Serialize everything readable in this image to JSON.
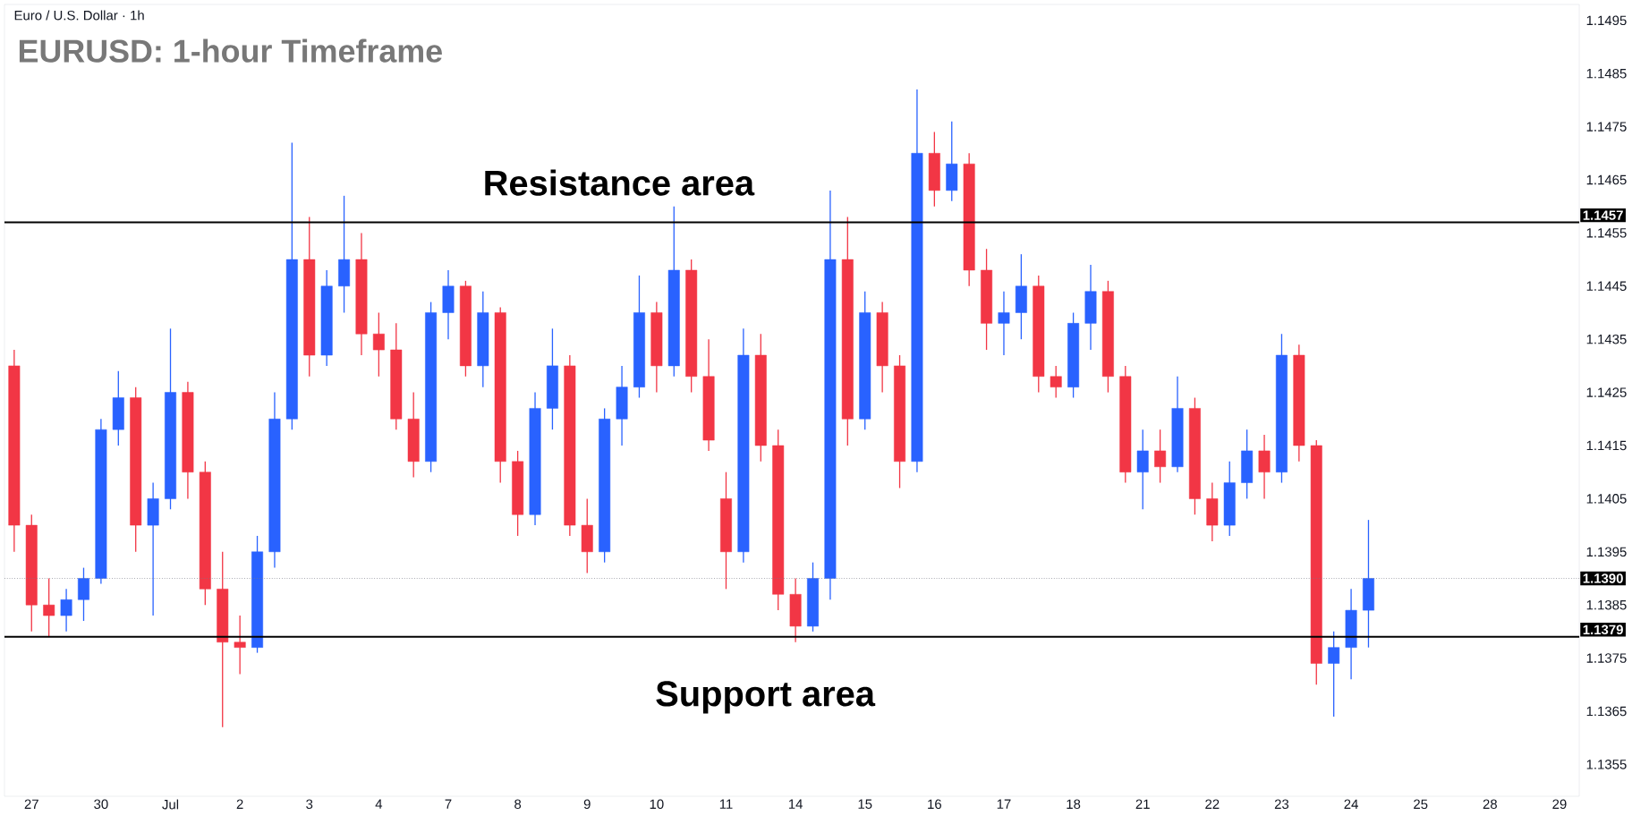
{
  "chart_data": {
    "type": "candlestick",
    "title": "EURUSD: 1-hour Timeframe",
    "subtitle": "Euro / U.S. Dollar · 1h",
    "categories": [
      null,
      "27",
      null,
      null,
      null,
      "30",
      null,
      null,
      null,
      "Jul",
      null,
      null,
      null,
      "2",
      null,
      null,
      null,
      "3",
      null,
      null,
      null,
      "4",
      null,
      null,
      null,
      "7",
      null,
      null,
      null,
      "8",
      null,
      null,
      null,
      "9",
      null,
      null,
      null,
      "10",
      null,
      null,
      null,
      "11",
      null,
      null,
      null,
      "14",
      null,
      null,
      null,
      "15",
      null,
      null,
      null,
      "16",
      null,
      null,
      null,
      "17",
      null,
      null,
      null,
      "18",
      null,
      null,
      null,
      "21",
      null,
      null,
      null,
      "22",
      null,
      null,
      null,
      "23",
      null,
      null,
      null,
      "24",
      null,
      null,
      null,
      "25",
      null,
      null,
      null,
      "28",
      null,
      null,
      null,
      "29",
      null
    ],
    "ohlc": [
      [
        1.143,
        1.1433,
        1.1395,
        1.14
      ],
      [
        1.14,
        1.1402,
        1.138,
        1.1385
      ],
      [
        1.1385,
        1.139,
        1.1379,
        1.1383
      ],
      [
        1.1383,
        1.1388,
        1.138,
        1.1386
      ],
      [
        1.1386,
        1.1392,
        1.1382,
        1.139
      ],
      [
        1.139,
        1.142,
        1.1389,
        1.1418
      ],
      [
        1.1418,
        1.1429,
        1.1415,
        1.1424
      ],
      [
        1.1424,
        1.1426,
        1.1395,
        1.14
      ],
      [
        1.14,
        1.1408,
        1.1383,
        1.1405
      ],
      [
        1.1405,
        1.1437,
        1.1403,
        1.1425
      ],
      [
        1.1425,
        1.1427,
        1.1405,
        1.141
      ],
      [
        1.141,
        1.1412,
        1.1385,
        1.1388
      ],
      [
        1.1388,
        1.1395,
        1.1362,
        1.1378
      ],
      [
        1.1378,
        1.1383,
        1.1372,
        1.1377
      ],
      [
        1.1377,
        1.1398,
        1.1376,
        1.1395
      ],
      [
        1.1395,
        1.1425,
        1.1392,
        1.142
      ],
      [
        1.142,
        1.1472,
        1.1418,
        1.145
      ],
      [
        1.145,
        1.1458,
        1.1428,
        1.1432
      ],
      [
        1.1432,
        1.1448,
        1.143,
        1.1445
      ],
      [
        1.1445,
        1.1462,
        1.144,
        1.145
      ],
      [
        1.145,
        1.1455,
        1.1432,
        1.1436
      ],
      [
        1.1436,
        1.144,
        1.1428,
        1.1433
      ],
      [
        1.1433,
        1.1438,
        1.1418,
        1.142
      ],
      [
        1.142,
        1.1425,
        1.1409,
        1.1412
      ],
      [
        1.1412,
        1.1442,
        1.141,
        1.144
      ],
      [
        1.144,
        1.1448,
        1.1435,
        1.1445
      ],
      [
        1.1445,
        1.1446,
        1.1428,
        1.143
      ],
      [
        1.143,
        1.1444,
        1.1426,
        1.144
      ],
      [
        1.144,
        1.1441,
        1.1408,
        1.1412
      ],
      [
        1.1412,
        1.1414,
        1.1398,
        1.1402
      ],
      [
        1.1402,
        1.1425,
        1.14,
        1.1422
      ],
      [
        1.1422,
        1.1437,
        1.1418,
        1.143
      ],
      [
        1.143,
        1.1432,
        1.1398,
        1.14
      ],
      [
        1.14,
        1.1405,
        1.1391,
        1.1395
      ],
      [
        1.1395,
        1.1422,
        1.1393,
        1.142
      ],
      [
        1.142,
        1.143,
        1.1415,
        1.1426
      ],
      [
        1.1426,
        1.1447,
        1.1424,
        1.144
      ],
      [
        1.144,
        1.1442,
        1.1425,
        1.143
      ],
      [
        1.143,
        1.146,
        1.1428,
        1.1448
      ],
      [
        1.1448,
        1.145,
        1.1425,
        1.1428
      ],
      [
        1.1428,
        1.1435,
        1.1414,
        1.1416
      ],
      [
        1.1405,
        1.141,
        1.1388,
        1.1395
      ],
      [
        1.1395,
        1.1437,
        1.1393,
        1.1432
      ],
      [
        1.1432,
        1.1436,
        1.1412,
        1.1415
      ],
      [
        1.1415,
        1.1418,
        1.1384,
        1.1387
      ],
      [
        1.1387,
        1.139,
        1.1378,
        1.1381
      ],
      [
        1.1381,
        1.1393,
        1.138,
        1.139
      ],
      [
        1.139,
        1.1463,
        1.1386,
        1.145
      ],
      [
        1.145,
        1.1458,
        1.1415,
        1.142
      ],
      [
        1.142,
        1.1444,
        1.1418,
        1.144
      ],
      [
        1.144,
        1.1442,
        1.1425,
        1.143
      ],
      [
        1.143,
        1.1432,
        1.1407,
        1.1412
      ],
      [
        1.1412,
        1.1482,
        1.141,
        1.147
      ],
      [
        1.147,
        1.1474,
        1.146,
        1.1463
      ],
      [
        1.1463,
        1.1476,
        1.1461,
        1.1468
      ],
      [
        1.1468,
        1.147,
        1.1445,
        1.1448
      ],
      [
        1.1448,
        1.1452,
        1.1433,
        1.1438
      ],
      [
        1.1438,
        1.1444,
        1.1432,
        1.144
      ],
      [
        1.144,
        1.1451,
        1.1435,
        1.1445
      ],
      [
        1.1445,
        1.1447,
        1.1425,
        1.1428
      ],
      [
        1.1428,
        1.143,
        1.1424,
        1.1426
      ],
      [
        1.1426,
        1.144,
        1.1424,
        1.1438
      ],
      [
        1.1438,
        1.1449,
        1.1433,
        1.1444
      ],
      [
        1.1444,
        1.1446,
        1.1425,
        1.1428
      ],
      [
        1.1428,
        1.143,
        1.1408,
        1.141
      ],
      [
        1.141,
        1.1418,
        1.1403,
        1.1414
      ],
      [
        1.1414,
        1.1418,
        1.1408,
        1.1411
      ],
      [
        1.1411,
        1.1428,
        1.141,
        1.1422
      ],
      [
        1.1422,
        1.1424,
        1.1402,
        1.1405
      ],
      [
        1.1405,
        1.1408,
        1.1397,
        1.14
      ],
      [
        1.14,
        1.1412,
        1.1398,
        1.1408
      ],
      [
        1.1408,
        1.1418,
        1.1405,
        1.1414
      ],
      [
        1.1414,
        1.1417,
        1.1405,
        1.141
      ],
      [
        1.141,
        1.1436,
        1.1408,
        1.1432
      ],
      [
        1.1432,
        1.1434,
        1.1412,
        1.1415
      ],
      [
        1.1415,
        1.1416,
        1.137,
        1.1374
      ],
      [
        1.1374,
        1.138,
        1.1364,
        1.1377
      ],
      [
        1.1377,
        1.1388,
        1.1371,
        1.1384
      ],
      [
        1.1384,
        1.1401,
        1.1377,
        1.139
      ],
      null,
      null,
      null,
      null,
      null,
      null,
      null,
      null,
      null,
      null,
      null,
      null
    ],
    "colors": [
      "#f23645",
      "#f23645",
      "#f23645",
      "#2962ff",
      "#2962ff",
      "#2962ff",
      "#2962ff",
      "#f23645",
      "#2962ff",
      "#2962ff",
      "#f23645",
      "#f23645",
      "#f23645",
      "#f23645",
      "#2962ff",
      "#2962ff",
      "#2962ff",
      "#f23645",
      "#2962ff",
      "#2962ff",
      "#f23645",
      "#f23645",
      "#f23645",
      "#f23645",
      "#2962ff",
      "#2962ff",
      "#f23645",
      "#2962ff",
      "#f23645",
      "#f23645",
      "#2962ff",
      "#2962ff",
      "#f23645",
      "#f23645",
      "#2962ff",
      "#2962ff",
      "#2962ff",
      "#f23645",
      "#2962ff",
      "#f23645",
      "#f23645",
      "#f23645",
      "#2962ff",
      "#f23645",
      "#f23645",
      "#f23645",
      "#2962ff",
      "#2962ff",
      "#f23645",
      "#2962ff",
      "#f23645",
      "#f23645",
      "#2962ff",
      "#f23645",
      "#2962ff",
      "#f23645",
      "#f23645",
      "#2962ff",
      "#2962ff",
      "#f23645",
      "#f23645",
      "#2962ff",
      "#2962ff",
      "#f23645",
      "#f23645",
      "#2962ff",
      "#f23645",
      "#2962ff",
      "#f23645",
      "#f23645",
      "#2962ff",
      "#2962ff",
      "#f23645",
      "#2962ff",
      "#f23645",
      "#f23645",
      "#2962ff",
      "#2962ff",
      "#2962ff",
      null,
      null,
      null,
      null,
      null,
      null,
      null,
      null,
      null,
      null,
      null,
      null
    ],
    "ylim": [
      1.1349,
      1.1498
    ],
    "yticks": [
      1.1355,
      1.1365,
      1.1375,
      1.1385,
      1.1395,
      1.1405,
      1.1415,
      1.1425,
      1.1435,
      1.1445,
      1.1455,
      1.1465,
      1.1475,
      1.1485,
      1.1495
    ],
    "ref_lines": [
      {
        "axis": "y",
        "value": 1.1457,
        "label": "1.1457",
        "color": "#000000",
        "line_style": "solid"
      },
      {
        "axis": "y",
        "value": 1.1379,
        "label": "1.1379",
        "color": "#000000",
        "line_style": "solid"
      },
      {
        "axis": "y",
        "value": 1.139,
        "label": "1.1390",
        "color": "#787b86",
        "line_style": "dotted"
      }
    ],
    "annotations": [
      "Resistance area",
      "Support area"
    ],
    "grid": false
  }
}
